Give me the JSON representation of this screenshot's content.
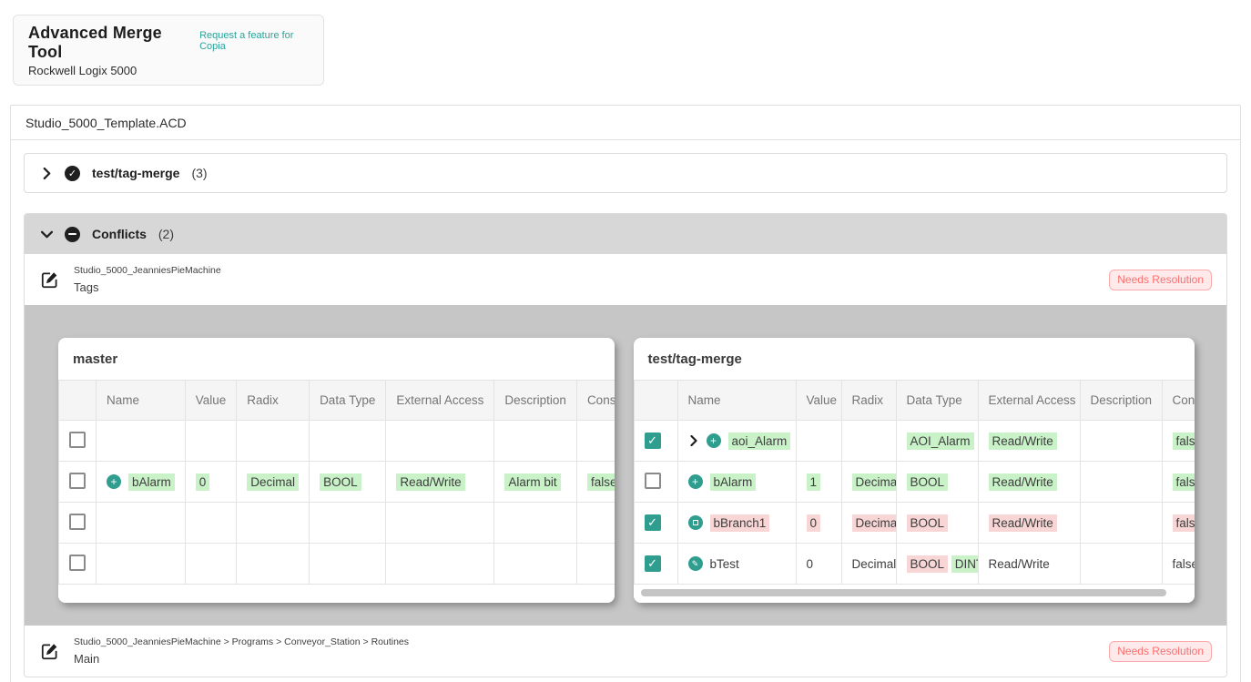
{
  "app": {
    "title": "Advanced Merge Tool",
    "subtitle": "Rockwell Logix 5000",
    "feature_link": "Request a feature for Copia"
  },
  "file_card": {
    "filename": "Studio_5000_Template.ACD",
    "resolved_section": {
      "label": "test/tag-merge",
      "count": "(3)",
      "status_icon": "check-circle-icon"
    },
    "conflicts_section": {
      "label": "Conflicts",
      "count": "(2)",
      "status_icon": "minus-circle-icon"
    }
  },
  "conflict_items": [
    {
      "path": "Studio_5000_JeanniesPieMachine",
      "name": "Tags",
      "badge": "Needs Resolution"
    },
    {
      "path": "Studio_5000_JeanniesPieMachine > Programs > Conveyor_Station > Routines",
      "name": "Main",
      "badge": "Needs Resolution"
    }
  ],
  "diff": {
    "columns": [
      "Name",
      "Value",
      "Radix",
      "Data Type",
      "External Access",
      "Description",
      "Constant"
    ],
    "master": {
      "title": "master",
      "rows": [
        {
          "checked": false,
          "icon": null,
          "chevron": false,
          "cells": [
            [],
            [],
            [],
            [],
            [],
            [],
            []
          ]
        },
        {
          "checked": false,
          "icon": "added",
          "chevron": false,
          "cells": [
            [
              {
                "t": "bAlarm",
                "h": "green"
              }
            ],
            [
              {
                "t": "0",
                "h": "green"
              }
            ],
            [
              {
                "t": "Decimal",
                "h": "green"
              }
            ],
            [
              {
                "t": "BOOL",
                "h": "green"
              }
            ],
            [
              {
                "t": "Read/Write",
                "h": "green"
              }
            ],
            [
              {
                "t": "Alarm bit",
                "h": "green"
              }
            ],
            [
              {
                "t": "false",
                "h": "green"
              }
            ]
          ]
        },
        {
          "checked": false,
          "icon": null,
          "chevron": false,
          "cells": [
            [],
            [],
            [],
            [],
            [],
            [],
            []
          ]
        },
        {
          "checked": false,
          "icon": null,
          "chevron": false,
          "cells": [
            [],
            [],
            [],
            [],
            [],
            [],
            []
          ]
        }
      ]
    },
    "branch": {
      "title": "test/tag-merge",
      "rows": [
        {
          "checked": true,
          "icon": "added",
          "chevron": true,
          "cells": [
            [
              {
                "t": "aoi_Alarm",
                "h": "green"
              }
            ],
            [],
            [],
            [
              {
                "t": "AOI_Alarm",
                "h": "green"
              }
            ],
            [
              {
                "t": "Read/Write",
                "h": "green"
              }
            ],
            [],
            [
              {
                "t": "false",
                "h": "green"
              }
            ]
          ]
        },
        {
          "checked": false,
          "icon": "added",
          "chevron": false,
          "cells": [
            [
              {
                "t": "bAlarm",
                "h": "green"
              }
            ],
            [
              {
                "t": "1",
                "h": "green"
              }
            ],
            [
              {
                "t": "Decimal",
                "h": "green"
              }
            ],
            [
              {
                "t": "BOOL",
                "h": "green"
              }
            ],
            [
              {
                "t": "Read/Write",
                "h": "green"
              }
            ],
            [],
            [
              {
                "t": "false",
                "h": "green"
              }
            ]
          ]
        },
        {
          "checked": true,
          "icon": "conflict",
          "chevron": false,
          "cells": [
            [
              {
                "t": "bBranch1",
                "h": "red"
              }
            ],
            [
              {
                "t": "0",
                "h": "red"
              }
            ],
            [
              {
                "t": "Decimal",
                "h": "red"
              }
            ],
            [
              {
                "t": "BOOL",
                "h": "red"
              }
            ],
            [
              {
                "t": "Read/Write",
                "h": "red"
              }
            ],
            [],
            [
              {
                "t": "false",
                "h": "red"
              }
            ]
          ]
        },
        {
          "checked": true,
          "icon": "modified",
          "chevron": false,
          "cells": [
            [
              {
                "t": "bTest",
                "h": null
              }
            ],
            [
              {
                "t": "0",
                "h": null
              }
            ],
            [
              {
                "t": "Decimal",
                "h": null
              }
            ],
            [
              {
                "t": "BOOL",
                "h": "red"
              },
              {
                "t": "DINT",
                "h": "green"
              }
            ],
            [
              {
                "t": "Read/Write",
                "h": null
              }
            ],
            [],
            [
              {
                "t": "false",
                "h": null
              }
            ]
          ]
        }
      ]
    }
  },
  "colors": {
    "accent_teal": "#2f9e8e",
    "added_highlight": "#c9f2c8",
    "removed_highlight": "#f8d6d6",
    "badge_red": "#fd6e6e",
    "status_dark": "#1f1f1f",
    "diff_background": "#c6c6c6"
  }
}
